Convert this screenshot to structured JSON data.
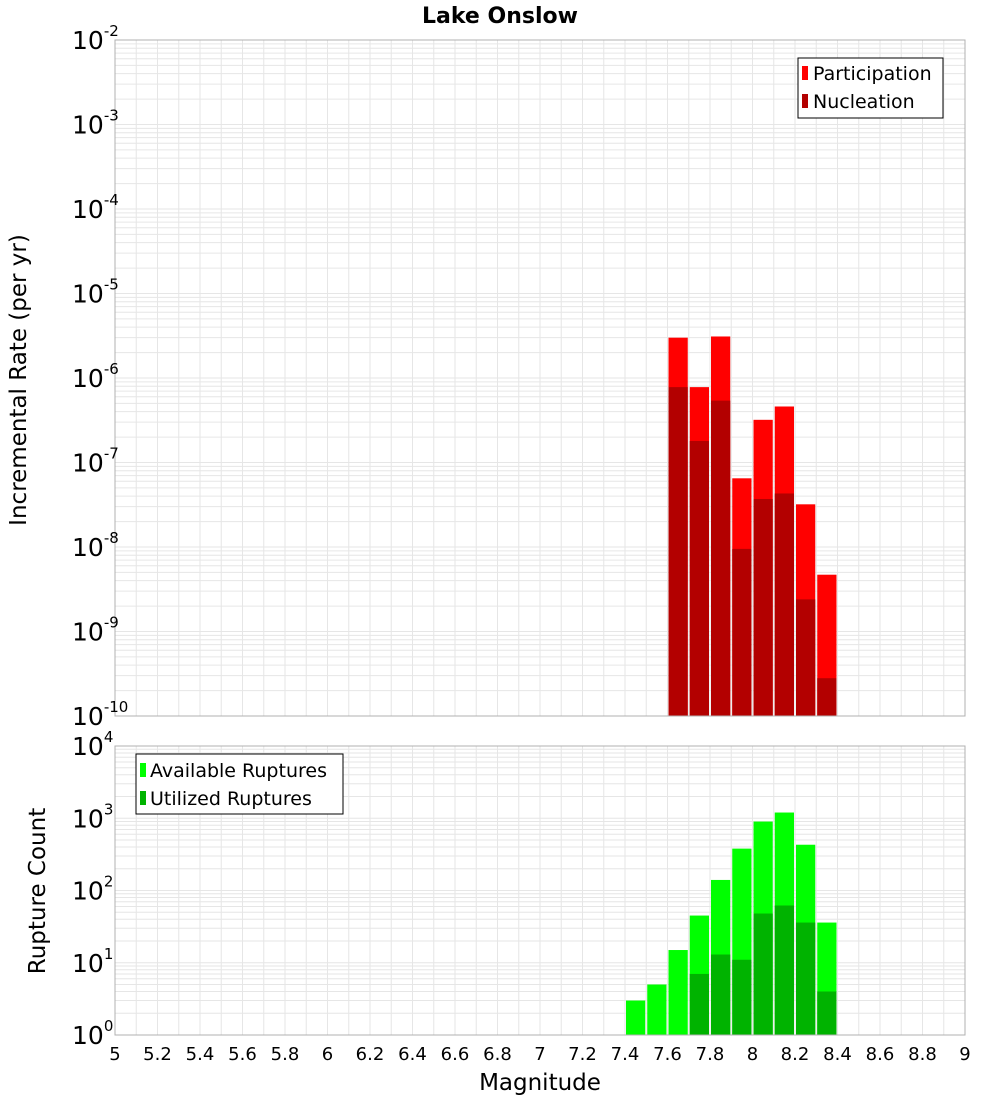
{
  "chart_data": [
    {
      "type": "bar",
      "title": "Lake Onslow",
      "xlabel": "",
      "ylabel": "Incremental Rate (per yr)",
      "yscale": "log",
      "ylim_exponents": [
        -10,
        -2
      ],
      "xlim": [
        5,
        9
      ],
      "grid": true,
      "legend_position": "top-right",
      "legend": [
        {
          "name": "Participation",
          "color": "#ff0000"
        },
        {
          "name": "Nucleation",
          "color": "#b30000"
        }
      ],
      "bar_width": 0.1,
      "x": [
        7.65,
        7.75,
        7.85,
        7.95,
        8.05,
        8.15,
        8.25,
        8.35
      ],
      "series": [
        {
          "name": "Participation",
          "color": "#ff0000",
          "values": [
            3e-06,
            7.8e-07,
            3.1e-06,
            6.5e-08,
            3.2e-07,
            4.6e-07,
            3.2e-08,
            4.7e-09
          ]
        },
        {
          "name": "Nucleation",
          "color": "#b30000",
          "values": [
            7.8e-07,
            1.8e-07,
            5.4e-07,
            9.5e-09,
            3.7e-08,
            4.3e-08,
            2.4e-09,
            2.8e-10
          ]
        }
      ]
    },
    {
      "type": "bar",
      "title": "",
      "xlabel": "Magnitude",
      "ylabel": "Rupture Count",
      "yscale": "log",
      "ylim_exponents": [
        0,
        4
      ],
      "xlim": [
        5,
        9
      ],
      "grid": true,
      "legend_position": "top-left",
      "legend": [
        {
          "name": "Available Ruptures",
          "color": "#00ff00"
        },
        {
          "name": "Utilized Ruptures",
          "color": "#00b300"
        }
      ],
      "bar_width": 0.1,
      "x": [
        7.05,
        7.35,
        7.45,
        7.55,
        7.65,
        7.75,
        7.85,
        7.95,
        8.05,
        8.15,
        8.25,
        8.35
      ],
      "series": [
        {
          "name": "Available Ruptures",
          "color": "#00ff00",
          "values": [
            1,
            1,
            3,
            5,
            15,
            45,
            140,
            380,
            900,
            1200,
            430,
            36
          ]
        },
        {
          "name": "Utilized Ruptures",
          "color": "#00b300",
          "values": [
            0,
            0,
            0,
            0,
            1,
            7,
            13,
            11,
            48,
            62,
            36,
            4
          ]
        }
      ],
      "xticks": [
        "5",
        "5.2",
        "5.4",
        "5.6",
        "5.8",
        "6",
        "6.2",
        "6.4",
        "6.6",
        "6.8",
        "7",
        "7.2",
        "7.4",
        "7.6",
        "7.8",
        "8",
        "8.2",
        "8.4",
        "8.6",
        "8.8",
        "9"
      ]
    }
  ],
  "colors": {
    "grid": "#e6e6e6",
    "frame": "#b0b0b0"
  }
}
